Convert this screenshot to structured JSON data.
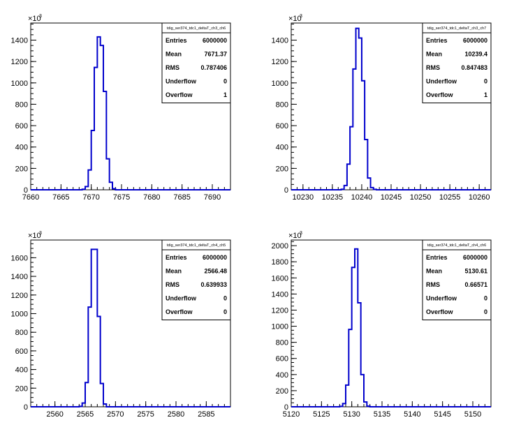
{
  "colors": {
    "histogram": "#0000cc",
    "axis": "#000000",
    "background": "#ffffff"
  },
  "chart_data": [
    {
      "type": "histogram",
      "title": "tdig_ser374_tdc1_deltaT_ch3_ch6",
      "y_multiplier": "×10",
      "y_multiplier_exp": "3",
      "xlim": [
        7660,
        7693
      ],
      "ylim": [
        0,
        1560
      ],
      "x_ticks": [
        7660,
        7665,
        7670,
        7675,
        7680,
        7685,
        7690
      ],
      "y_ticks": [
        0,
        200,
        400,
        600,
        800,
        1000,
        1200,
        1400
      ],
      "x_tick_labels": [
        "7660",
        "7665",
        "7670",
        "7675",
        "7680",
        "7685",
        "7690"
      ],
      "y_tick_labels": [
        "0",
        "200",
        "400",
        "600",
        "800",
        "1000",
        "1200",
        "1400"
      ],
      "bin_width": 0.5,
      "bins": [
        {
          "x": 7668.5,
          "y": 5
        },
        {
          "x": 7669.0,
          "y": 30
        },
        {
          "x": 7669.5,
          "y": 185
        },
        {
          "x": 7670.0,
          "y": 555
        },
        {
          "x": 7670.5,
          "y": 1145
        },
        {
          "x": 7671.0,
          "y": 1430
        },
        {
          "x": 7671.5,
          "y": 1350
        },
        {
          "x": 7672.0,
          "y": 920
        },
        {
          "x": 7672.5,
          "y": 290
        },
        {
          "x": 7673.0,
          "y": 70
        },
        {
          "x": 7673.5,
          "y": 10
        }
      ],
      "stats": [
        {
          "label": "Entries",
          "value": "6000000"
        },
        {
          "label": "Mean",
          "value": "7671.37"
        },
        {
          "label": "RMS",
          "value": "0.787406"
        },
        {
          "label": "Underflow",
          "value": "0"
        },
        {
          "label": "Overflow",
          "value": "1"
        }
      ]
    },
    {
      "type": "histogram",
      "title": "tdig_ser374_tdc1_deltaT_ch3_ch7",
      "y_multiplier": "×10",
      "y_multiplier_exp": "3",
      "xlim": [
        10228,
        10262
      ],
      "ylim": [
        0,
        1560
      ],
      "x_ticks": [
        10230,
        10235,
        10240,
        10245,
        10250,
        10255,
        10260
      ],
      "y_ticks": [
        0,
        200,
        400,
        600,
        800,
        1000,
        1200,
        1400
      ],
      "x_tick_labels": [
        "10230",
        "10235",
        "10240",
        "10245",
        "10250",
        "10255",
        "10260"
      ],
      "y_tick_labels": [
        "0",
        "200",
        "400",
        "600",
        "800",
        "1000",
        "1200",
        "1400"
      ],
      "bin_width": 0.5,
      "bins": [
        {
          "x": 10236.5,
          "y": 5
        },
        {
          "x": 10237.0,
          "y": 40
        },
        {
          "x": 10237.5,
          "y": 240
        },
        {
          "x": 10238.0,
          "y": 590
        },
        {
          "x": 10238.5,
          "y": 1130
        },
        {
          "x": 10239.0,
          "y": 1510
        },
        {
          "x": 10239.5,
          "y": 1420
        },
        {
          "x": 10240.0,
          "y": 1020
        },
        {
          "x": 10240.5,
          "y": 470
        },
        {
          "x": 10241.0,
          "y": 110
        },
        {
          "x": 10241.5,
          "y": 20
        },
        {
          "x": 10242.0,
          "y": 4
        }
      ],
      "stats": [
        {
          "label": "Entries",
          "value": "6000000"
        },
        {
          "label": "Mean",
          "value": "10239.4"
        },
        {
          "label": "RMS",
          "value": "0.847483"
        },
        {
          "label": "Underflow",
          "value": "0"
        },
        {
          "label": "Overflow",
          "value": "1"
        }
      ]
    },
    {
      "type": "histogram",
      "title": "tdig_ser374_tdc1_deltaT_ch4_ch5",
      "y_multiplier": "×10",
      "y_multiplier_exp": "3",
      "xlim": [
        2556,
        2589
      ],
      "ylim": [
        0,
        1790
      ],
      "x_ticks": [
        2560,
        2565,
        2570,
        2575,
        2580,
        2585
      ],
      "y_ticks": [
        0,
        200,
        400,
        600,
        800,
        1000,
        1200,
        1400,
        1600
      ],
      "x_tick_labels": [
        "2560",
        "2565",
        "2570",
        "2575",
        "2580",
        "2585"
      ],
      "y_tick_labels": [
        "0",
        "200",
        "400",
        "600",
        "800",
        "1000",
        "1200",
        "1400",
        "1600"
      ],
      "bin_width": 0.5,
      "bins": [
        {
          "x": 2564.0,
          "y": 5
        },
        {
          "x": 2564.5,
          "y": 40
        },
        {
          "x": 2565.0,
          "y": 260
        },
        {
          "x": 2565.5,
          "y": 1070
        },
        {
          "x": 2566.0,
          "y": 1690
        },
        {
          "x": 2566.5,
          "y": 1690
        },
        {
          "x": 2567.0,
          "y": 970
        },
        {
          "x": 2567.5,
          "y": 250
        },
        {
          "x": 2568.0,
          "y": 30
        }
      ],
      "stats": [
        {
          "label": "Entries",
          "value": "6000000"
        },
        {
          "label": "Mean",
          "value": "2566.48"
        },
        {
          "label": "RMS",
          "value": "0.639933"
        },
        {
          "label": "Underflow",
          "value": "0"
        },
        {
          "label": "Overflow",
          "value": "0"
        }
      ]
    },
    {
      "type": "histogram",
      "title": "tdig_ser374_tdc1_deltaT_ch4_ch6",
      "y_multiplier": "×10",
      "y_multiplier_exp": "3",
      "xlim": [
        5120,
        5153
      ],
      "ylim": [
        0,
        2070
      ],
      "x_ticks": [
        5120,
        5125,
        5130,
        5135,
        5140,
        5145,
        5150
      ],
      "y_ticks": [
        0,
        200,
        400,
        600,
        800,
        1000,
        1200,
        1400,
        1600,
        1800,
        2000
      ],
      "x_tick_labels": [
        "5120",
        "5125",
        "5130",
        "5135",
        "5140",
        "5145",
        "5150"
      ],
      "y_tick_labels": [
        "0",
        "200",
        "400",
        "600",
        "800",
        "1000",
        "1200",
        "1400",
        "1600",
        "1800",
        "2000"
      ],
      "bin_width": 0.5,
      "bins": [
        {
          "x": 5128.0,
          "y": 5
        },
        {
          "x": 5128.5,
          "y": 40
        },
        {
          "x": 5129.0,
          "y": 270
        },
        {
          "x": 5129.5,
          "y": 960
        },
        {
          "x": 5130.0,
          "y": 1730
        },
        {
          "x": 5130.5,
          "y": 1960
        },
        {
          "x": 5131.0,
          "y": 1290
        },
        {
          "x": 5131.5,
          "y": 400
        },
        {
          "x": 5132.0,
          "y": 60
        },
        {
          "x": 5132.5,
          "y": 8
        }
      ],
      "stats": [
        {
          "label": "Entries",
          "value": "6000000"
        },
        {
          "label": "Mean",
          "value": "5130.61"
        },
        {
          "label": "RMS",
          "value": "0.66571"
        },
        {
          "label": "Underflow",
          "value": "0"
        },
        {
          "label": "Overflow",
          "value": "0"
        }
      ]
    }
  ]
}
